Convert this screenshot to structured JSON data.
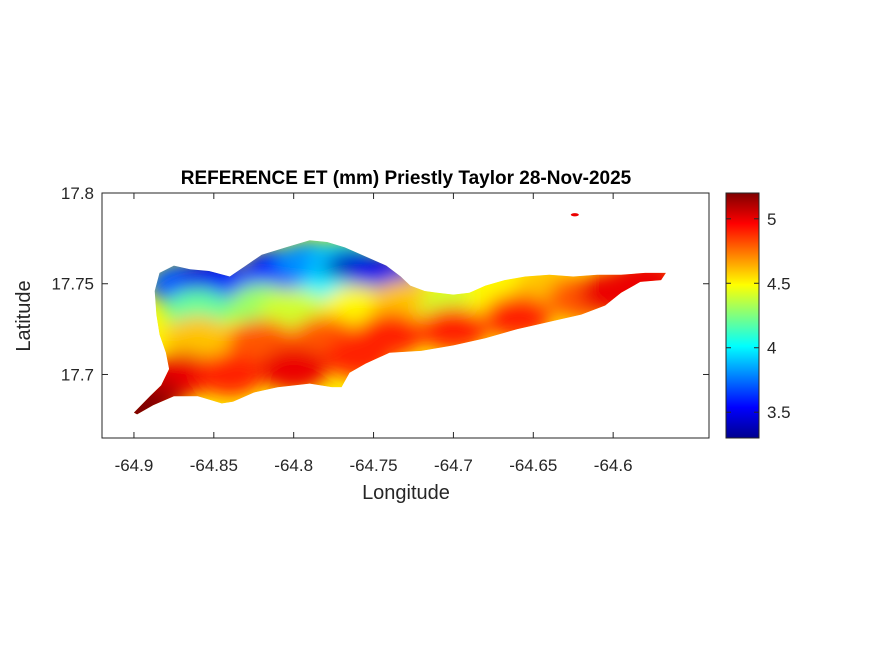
{
  "chart_data": {
    "type": "heatmap",
    "title": "REFERENCE ET (mm) Priestly Taylor 28-Nov-2025",
    "xlabel": "Longitude",
    "ylabel": "Latitude",
    "xlim": [
      -64.92,
      -64.54
    ],
    "ylim": [
      17.665,
      17.8
    ],
    "xticks": [
      -64.9,
      -64.85,
      -64.8,
      -64.75,
      -64.7,
      -64.65,
      -64.6
    ],
    "xtick_labels": [
      "-64.9",
      "-64.85",
      "-64.8",
      "-64.75",
      "-64.7",
      "-64.65",
      "-64.6"
    ],
    "yticks": [
      17.7,
      17.75,
      17.8
    ],
    "ytick_labels": [
      "17.7",
      "17.75",
      "17.8"
    ],
    "colorbar": {
      "range": [
        3.3,
        5.2
      ],
      "ticks": [
        3.5,
        4,
        4.5,
        5
      ],
      "tick_labels": [
        "3.5",
        "4",
        "4.5",
        "5"
      ],
      "colormap": "jet"
    },
    "grid": false,
    "island_outline": [
      [
        -64.9,
        17.679
      ],
      [
        -64.89,
        17.688
      ],
      [
        -64.883,
        17.694
      ],
      [
        -64.878,
        17.703
      ],
      [
        -64.88,
        17.712
      ],
      [
        -64.884,
        17.722
      ],
      [
        -64.886,
        17.733
      ],
      [
        -64.887,
        17.746
      ],
      [
        -64.884,
        17.756
      ],
      [
        -64.875,
        17.76
      ],
      [
        -64.865,
        17.758
      ],
      [
        -64.853,
        17.757
      ],
      [
        -64.84,
        17.754
      ],
      [
        -64.83,
        17.76
      ],
      [
        -64.82,
        17.766
      ],
      [
        -64.805,
        17.77
      ],
      [
        -64.79,
        17.774
      ],
      [
        -64.779,
        17.773
      ],
      [
        -64.768,
        17.77
      ],
      [
        -64.755,
        17.765
      ],
      [
        -64.742,
        17.76
      ],
      [
        -64.733,
        17.754
      ],
      [
        -64.727,
        17.749
      ],
      [
        -64.718,
        17.746
      ],
      [
        -64.71,
        17.745
      ],
      [
        -64.7,
        17.744
      ],
      [
        -64.69,
        17.745
      ],
      [
        -64.68,
        17.749
      ],
      [
        -64.668,
        17.752
      ],
      [
        -64.655,
        17.754
      ],
      [
        -64.64,
        17.755
      ],
      [
        -64.625,
        17.754
      ],
      [
        -64.61,
        17.755
      ],
      [
        -64.595,
        17.755
      ],
      [
        -64.58,
        17.756
      ],
      [
        -64.567,
        17.756
      ],
      [
        -64.57,
        17.752
      ],
      [
        -64.583,
        17.751
      ],
      [
        -64.595,
        17.745
      ],
      [
        -64.605,
        17.738
      ],
      [
        -64.62,
        17.733
      ],
      [
        -64.64,
        17.729
      ],
      [
        -64.66,
        17.725
      ],
      [
        -64.68,
        17.72
      ],
      [
        -64.7,
        17.716
      ],
      [
        -64.72,
        17.713
      ],
      [
        -64.74,
        17.712
      ],
      [
        -64.755,
        17.706
      ],
      [
        -64.765,
        17.701
      ],
      [
        -64.77,
        17.693
      ],
      [
        -64.776,
        17.693
      ],
      [
        -64.79,
        17.695
      ],
      [
        -64.81,
        17.693
      ],
      [
        -64.825,
        17.69
      ],
      [
        -64.838,
        17.685
      ],
      [
        -64.845,
        17.684
      ],
      [
        -64.86,
        17.688
      ],
      [
        -64.875,
        17.688
      ],
      [
        -64.888,
        17.683
      ],
      [
        -64.898,
        17.678
      ]
    ],
    "islet": {
      "lon": -64.624,
      "lat": 17.788,
      "value": 5.0
    },
    "field": [
      {
        "lon": -64.87,
        "lat": 17.75,
        "value": 3.7
      },
      {
        "lon": -64.85,
        "lat": 17.752,
        "value": 3.5
      },
      {
        "lon": -64.83,
        "lat": 17.748,
        "value": 3.6
      },
      {
        "lon": -64.81,
        "lat": 17.758,
        "value": 3.6
      },
      {
        "lon": -64.79,
        "lat": 17.762,
        "value": 3.8
      },
      {
        "lon": -64.77,
        "lat": 17.762,
        "value": 3.9
      },
      {
        "lon": -64.76,
        "lat": 17.756,
        "value": 3.4
      },
      {
        "lon": -64.745,
        "lat": 17.754,
        "value": 3.5
      },
      {
        "lon": -64.78,
        "lat": 17.742,
        "value": 4.0
      },
      {
        "lon": -64.86,
        "lat": 17.735,
        "value": 4.2
      },
      {
        "lon": -64.82,
        "lat": 17.738,
        "value": 4.3
      },
      {
        "lon": -64.8,
        "lat": 17.735,
        "value": 4.4
      },
      {
        "lon": -64.76,
        "lat": 17.737,
        "value": 4.5
      },
      {
        "lon": -64.73,
        "lat": 17.74,
        "value": 4.6
      },
      {
        "lon": -64.7,
        "lat": 17.738,
        "value": 4.4
      },
      {
        "lon": -64.67,
        "lat": 17.742,
        "value": 4.5
      },
      {
        "lon": -64.64,
        "lat": 17.748,
        "value": 4.6
      },
      {
        "lon": -64.62,
        "lat": 17.742,
        "value": 4.8
      },
      {
        "lon": -64.86,
        "lat": 17.72,
        "value": 4.6
      },
      {
        "lon": -64.82,
        "lat": 17.718,
        "value": 4.8
      },
      {
        "lon": -64.78,
        "lat": 17.72,
        "value": 4.8
      },
      {
        "lon": -64.74,
        "lat": 17.722,
        "value": 4.9
      },
      {
        "lon": -64.7,
        "lat": 17.725,
        "value": 4.9
      },
      {
        "lon": -64.66,
        "lat": 17.732,
        "value": 4.9
      },
      {
        "lon": -64.6,
        "lat": 17.745,
        "value": 5.0
      },
      {
        "lon": -64.58,
        "lat": 17.752,
        "value": 5.0
      },
      {
        "lon": -64.87,
        "lat": 17.7,
        "value": 5.0
      },
      {
        "lon": -64.84,
        "lat": 17.7,
        "value": 4.9
      },
      {
        "lon": -64.8,
        "lat": 17.703,
        "value": 5.0
      },
      {
        "lon": -64.76,
        "lat": 17.71,
        "value": 4.9
      },
      {
        "lon": -64.89,
        "lat": 17.688,
        "value": 5.1
      },
      {
        "lon": -64.898,
        "lat": 17.68,
        "value": 5.2
      }
    ]
  }
}
